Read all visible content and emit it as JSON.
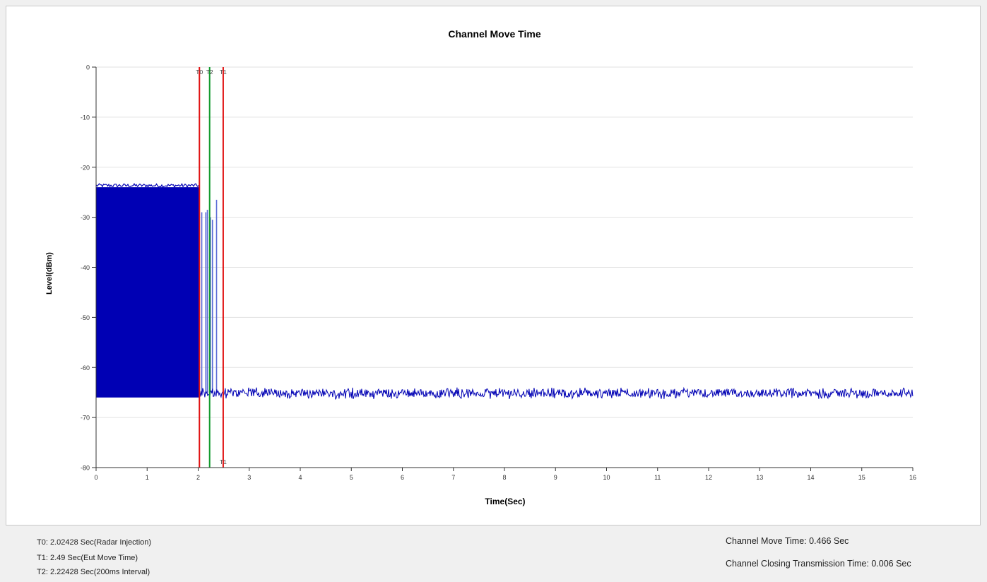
{
  "chart_data": {
    "type": "line",
    "title": "Channel Move Time",
    "xlabel": "Time(Sec)",
    "ylabel": "Level(dBm)",
    "xlim": [
      0,
      16
    ],
    "ylim": [
      -80,
      0
    ],
    "x_ticks": [
      "0",
      "1",
      "2",
      "3",
      "4",
      "5",
      "6",
      "7",
      "8",
      "9",
      "10",
      "11",
      "12",
      "13",
      "14",
      "15",
      "16"
    ],
    "y_ticks": [
      "0",
      "-10",
      "-20",
      "-30",
      "-40",
      "-50",
      "-60",
      "-70",
      "-80"
    ],
    "grid": "horizontal",
    "series": [
      {
        "color": "#0000b4",
        "segments": [
          {
            "kind": "dense",
            "x": [
              0,
              2.02
            ],
            "y_range": [
              -66,
              -24
            ]
          },
          {
            "kind": "spikes",
            "x": [
              2.07,
              2.15,
              2.18,
              2.24,
              2.28,
              2.36
            ],
            "y": [
              -29,
              -29,
              -28.5,
              -30,
              -30.5,
              -26.5
            ],
            "floor": -65
          },
          {
            "kind": "noise",
            "x": [
              2.02,
              16
            ],
            "y_range": [
              -66.3,
              -64
            ]
          }
        ]
      }
    ],
    "markers": [
      {
        "label": "T0",
        "x": 2.02428,
        "color": "#e01010",
        "bottom_label": ""
      },
      {
        "label": "T2",
        "x": 2.22428,
        "color": "#139a2e",
        "bottom_label": ""
      },
      {
        "label": "T1",
        "x": 2.49,
        "color": "#e01010",
        "bottom_label": "T1"
      }
    ]
  },
  "footer": {
    "t0": "T0: 2.02428 Sec(Radar Injection)",
    "t1": "T1: 2.49 Sec(Eut Move Time)",
    "t2": "T2: 2.22428 Sec(200ms Interval)",
    "move_time": "Channel Move Time: 0.466 Sec",
    "closing_time": "Channel Closing Transmission Time: 0.006 Sec"
  }
}
